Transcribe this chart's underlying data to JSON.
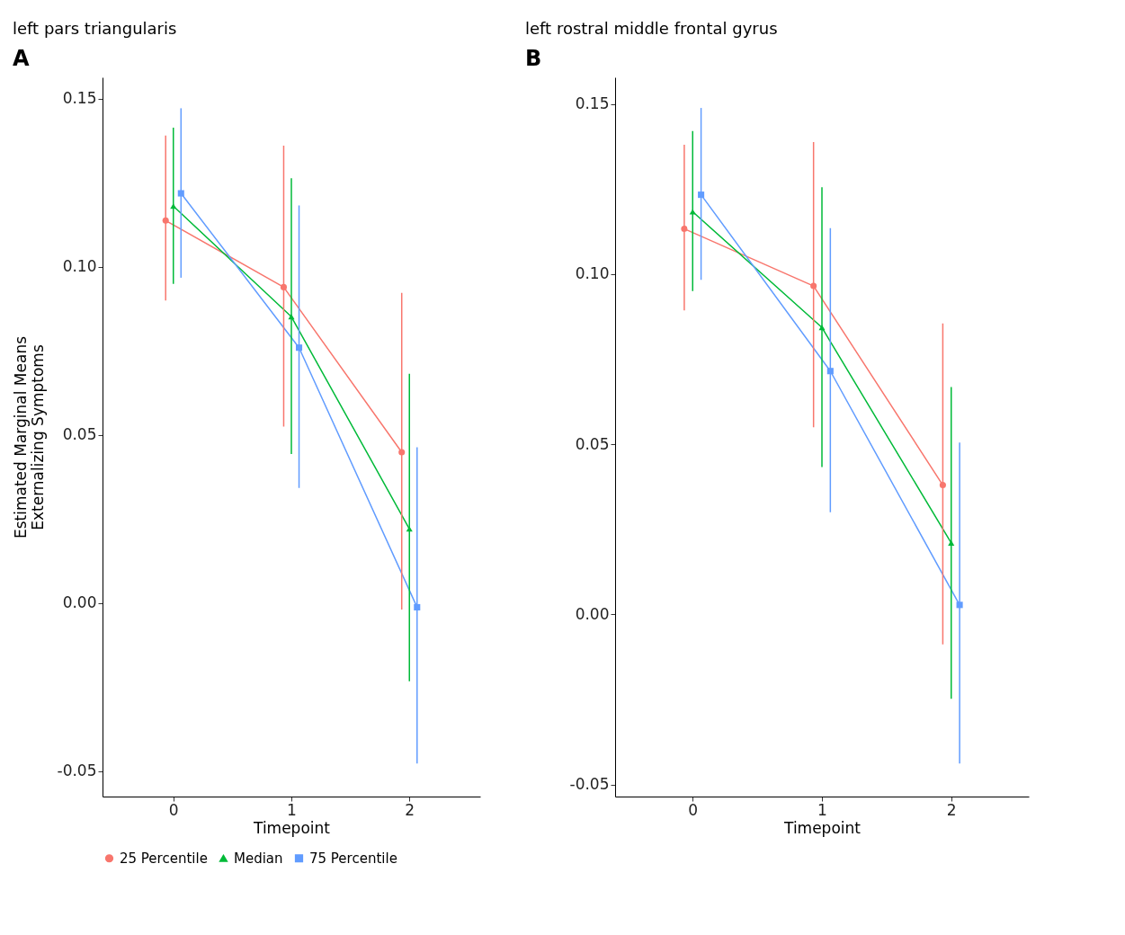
{
  "chart_data": [
    {
      "type": "line",
      "title": "left pars triangularis",
      "annotations": [
        "A"
      ],
      "xlabel": "Timepoint",
      "ylabel": "Estimated Marginal Means\nExternalizing Symptoms",
      "xlim": [
        -0.6,
        2.6
      ],
      "xticks": [
        0,
        1,
        2
      ],
      "ylim": [
        -0.0576,
        0.1563
      ],
      "yticks": [
        {
          "value": -0.05,
          "label": "-0.05"
        },
        {
          "value": 0,
          "label": "0.00"
        },
        {
          "value": 0.05,
          "label": "0.05"
        },
        {
          "value": 0.1,
          "label": "0.10"
        },
        {
          "value": 0.15,
          "label": "0.15"
        }
      ],
      "grid": false,
      "legend": "bottom",
      "series": [
        {
          "name": "25 Percentile",
          "color": "#f8766d",
          "marker": "circle",
          "x": [
            -0.065,
            0.935,
            1.935
          ],
          "values": [
            0.1137,
            0.0939,
            0.0448
          ],
          "errors": [
            [
              0.0899,
              0.139
            ],
            [
              0.0524,
              0.136
            ],
            [
              -0.002,
              0.0922
            ]
          ]
        },
        {
          "name": "Median",
          "color": "#00ba38",
          "marker": "triangle",
          "x": [
            0,
            1,
            2
          ],
          "values": [
            0.118,
            0.0851,
            0.022
          ],
          "errors": [
            [
              0.0949,
              0.1413
            ],
            [
              0.0443,
              0.1263
            ],
            [
              -0.0233,
              0.0681
            ]
          ]
        },
        {
          "name": "75 Percentile",
          "color": "#619cff",
          "marker": "square",
          "x": [
            0.065,
            1.065,
            2.065
          ],
          "values": [
            0.1218,
            0.0759,
            -0.0013
          ],
          "errors": [
            [
              0.0967,
              0.1471
            ],
            [
              0.0342,
              0.1182
            ],
            [
              -0.0478,
              0.0463
            ]
          ]
        }
      ]
    },
    {
      "type": "line",
      "title": "left rostral middle frontal gyrus",
      "annotations": [
        "B"
      ],
      "xlabel": "Timepoint",
      "xlim": [
        -0.6,
        2.6
      ],
      "xticks": [
        0,
        1,
        2
      ],
      "ylim": [
        -0.0535,
        0.1578
      ],
      "yticks": [
        {
          "value": -0.05,
          "label": "-0.05"
        },
        {
          "value": 0,
          "label": "0.00"
        },
        {
          "value": 0.05,
          "label": "0.05"
        },
        {
          "value": 0.1,
          "label": "0.10"
        },
        {
          "value": 0.15,
          "label": "0.15"
        }
      ],
      "grid": false,
      "legend": "bottom",
      "series": [
        {
          "name": "25 Percentile",
          "color": "#f8766d",
          "marker": "circle",
          "x": [
            -0.065,
            0.935,
            1.935
          ],
          "values": [
            0.1133,
            0.0965,
            0.038
          ],
          "errors": [
            [
              0.0893,
              0.138
            ],
            [
              0.055,
              0.1388
            ],
            [
              -0.0088,
              0.0855
            ]
          ]
        },
        {
          "name": "Median",
          "color": "#00ba38",
          "marker": "triangle",
          "x": [
            0,
            1,
            2
          ],
          "values": [
            0.1183,
            0.0843,
            0.021
          ],
          "errors": [
            [
              0.095,
              0.142
            ],
            [
              0.0433,
              0.1255
            ],
            [
              -0.0248,
              0.0668
            ]
          ]
        },
        {
          "name": "75 Percentile",
          "color": "#619cff",
          "marker": "square",
          "x": [
            0.065,
            1.065,
            2.065
          ],
          "values": [
            0.1233,
            0.0715,
            0.0028
          ],
          "errors": [
            [
              0.0983,
              0.1488
            ],
            [
              0.03,
              0.1135
            ],
            [
              -0.0438,
              0.0505
            ]
          ]
        }
      ]
    }
  ]
}
